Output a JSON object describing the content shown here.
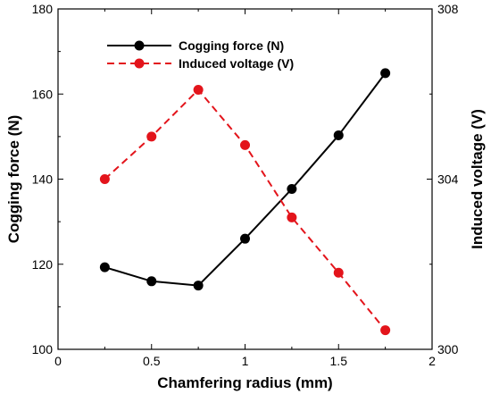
{
  "chart_data": {
    "type": "line",
    "xlabel": "Chamfering radius (mm)",
    "ylabel_left": "Cogging force (N)",
    "ylabel_right": "Induced voltage (V)",
    "xlim": [
      0,
      2
    ],
    "ylim_left": [
      100,
      180
    ],
    "ylim_right": [
      300,
      308
    ],
    "x_ticks": [
      0,
      0.5,
      1,
      1.5,
      2
    ],
    "x_tick_labels": [
      "0",
      "0.5",
      "1",
      "1.5",
      "2"
    ],
    "y_left_ticks": [
      100,
      120,
      140,
      160,
      180
    ],
    "y_left_tick_labels": [
      "100",
      "120",
      "140",
      "160",
      "180"
    ],
    "y_right_ticks": [
      300,
      304,
      308
    ],
    "y_right_tick_labels": [
      "300",
      "304",
      "308"
    ],
    "grid": false,
    "legend_position": "top-left",
    "series": [
      {
        "name": "Cogging force (N)",
        "axis": "left",
        "color": "#000000",
        "line_style": "solid",
        "x": [
          0.25,
          0.5,
          0.75,
          1.0,
          1.25,
          1.5,
          1.75
        ],
        "values": [
          119.3,
          116.0,
          115.0,
          126.0,
          137.7,
          150.3,
          164.9
        ]
      },
      {
        "name": "Induced voltage (V)",
        "axis": "right",
        "color": "#e3141b",
        "line_style": "dashed",
        "x": [
          0.25,
          0.5,
          0.75,
          1.0,
          1.25,
          1.5,
          1.75
        ],
        "values": [
          304.0,
          305.0,
          306.1,
          304.8,
          303.1,
          301.8,
          300.45
        ]
      }
    ]
  }
}
